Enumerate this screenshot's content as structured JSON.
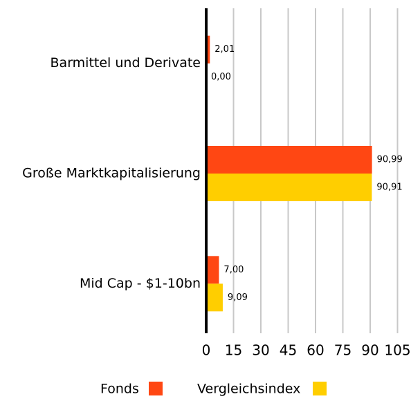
{
  "chart_data": {
    "type": "hbar",
    "categories": [
      "Barmittel und Derivate",
      "Große Marktkapitalisierung",
      "Mid Cap - $1-10bn"
    ],
    "series": [
      {
        "name": "Fonds",
        "color": "#ff4713",
        "values": [
          2.01,
          90.99,
          7.0
        ],
        "value_labels": [
          "2,01",
          "90,99",
          "7,00"
        ]
      },
      {
        "name": "Vergleichsindex",
        "color": "#ffce00",
        "values": [
          0.0,
          90.91,
          9.09
        ],
        "value_labels": [
          "0,00",
          "90,91",
          "9,09"
        ]
      }
    ],
    "xlim": [
      0,
      105
    ],
    "xticks": [
      0,
      15,
      30,
      45,
      60,
      75,
      90,
      105
    ],
    "grid": true,
    "legend": "bottom"
  }
}
